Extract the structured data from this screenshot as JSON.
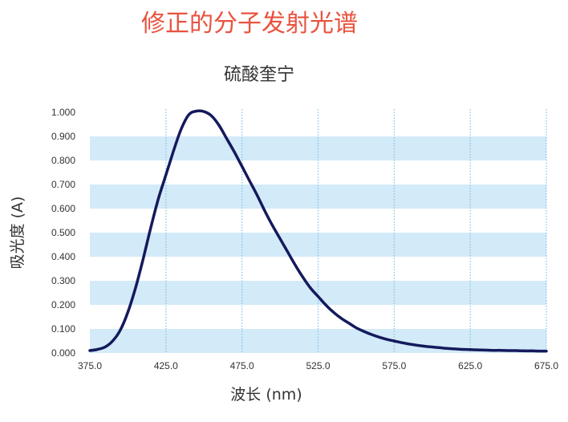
{
  "heading": "修正的分子发射光谱",
  "colors": {
    "heading": "#e8533f",
    "band": "#d3eaf8",
    "grid_vertical": "#7cc3ea",
    "curve": "#141a5c"
  },
  "chart_data": {
    "type": "line",
    "title": "硫酸奎宁",
    "xlabel": "波长 (nm)",
    "ylabel": "吸光度 (A)",
    "xlim": [
      375,
      675
    ],
    "ylim": [
      0,
      1
    ],
    "xticks": [
      375,
      425,
      475,
      525,
      575,
      625,
      675
    ],
    "xtick_labels": [
      "375.0",
      "425.0",
      "475.0",
      "525.0",
      "575.0",
      "625.0",
      "675.0"
    ],
    "yticks": [
      0,
      0.1,
      0.2,
      0.3,
      0.4,
      0.5,
      0.6,
      0.7,
      0.8,
      0.9,
      1.0
    ],
    "ytick_labels": [
      "0.000",
      "0.100",
      "0.200",
      "0.300",
      "0.400",
      "0.500",
      "0.600",
      "0.700",
      "0.800",
      "0.900",
      "1.000"
    ],
    "grid": "horizontal bands and dotted vertical lines",
    "legend": "none",
    "series": [
      {
        "x": [
          375,
          380,
          385,
          390,
          395,
          400,
          405,
          410,
          415,
          420,
          425,
          430,
          435,
          440,
          445,
          450,
          455,
          460,
          465,
          470,
          475,
          480,
          485,
          490,
          495,
          500,
          505,
          510,
          515,
          520,
          525,
          530,
          535,
          540,
          545,
          550,
          555,
          560,
          565,
          570,
          575,
          580,
          585,
          590,
          595,
          600,
          605,
          610,
          615,
          620,
          625,
          630,
          635,
          640,
          645,
          650,
          655,
          660,
          665,
          670,
          675
        ],
        "y": [
          0.01,
          0.015,
          0.025,
          0.05,
          0.095,
          0.17,
          0.27,
          0.39,
          0.52,
          0.64,
          0.74,
          0.84,
          0.93,
          0.99,
          1.005,
          1.003,
          0.985,
          0.945,
          0.89,
          0.835,
          0.775,
          0.715,
          0.655,
          0.59,
          0.53,
          0.475,
          0.42,
          0.365,
          0.315,
          0.27,
          0.235,
          0.2,
          0.17,
          0.145,
          0.125,
          0.105,
          0.09,
          0.077,
          0.066,
          0.057,
          0.05,
          0.043,
          0.037,
          0.032,
          0.028,
          0.025,
          0.022,
          0.019,
          0.017,
          0.015,
          0.014,
          0.013,
          0.012,
          0.011,
          0.011,
          0.01,
          0.01,
          0.009,
          0.009,
          0.008,
          0.008
        ]
      }
    ]
  }
}
